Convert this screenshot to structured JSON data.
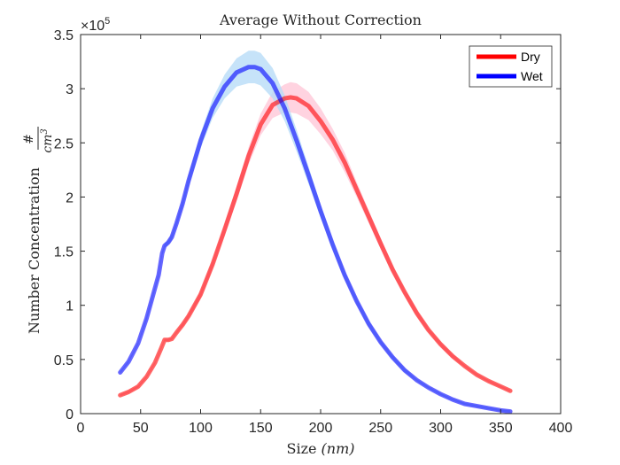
{
  "chart_data": {
    "type": "line",
    "title": "Average Without Correction",
    "xlabel": "Size (nm)",
    "xlabel_parts": {
      "text": "Size ",
      "unit": "(nm)"
    },
    "ylabel": "Number Concentration #/cm^3",
    "ylabel_parts": {
      "text": "Number Concentration",
      "num": "#",
      "den": "cm",
      "exp": "3"
    },
    "y_exponent_label": {
      "prefix": "×10",
      "power": "5"
    },
    "xlim": [
      0,
      400
    ],
    "ylim": [
      0,
      3.5
    ],
    "y_scale_factor": 100000,
    "x_ticks": [
      0,
      50,
      100,
      150,
      200,
      250,
      300,
      350,
      400
    ],
    "y_ticks": [
      0,
      0.5,
      1,
      1.5,
      2,
      2.5,
      3,
      3.5
    ],
    "y_tick_labels": [
      "0",
      "0.5",
      "1",
      "1.5",
      "2",
      "2.5",
      "3",
      "3.5"
    ],
    "grid": false,
    "legend_position": "top-right",
    "series": [
      {
        "name": "Dry",
        "color": "#ff0000",
        "band_color": "#ffc8d8",
        "x": [
          33,
          40,
          48,
          55,
          62,
          67,
          70,
          73,
          76,
          80,
          85,
          90,
          100,
          110,
          120,
          130,
          140,
          150,
          160,
          170,
          175,
          180,
          190,
          200,
          210,
          220,
          230,
          240,
          250,
          260,
          270,
          280,
          290,
          300,
          310,
          320,
          330,
          340,
          350,
          358
        ],
        "y": [
          0.17,
          0.2,
          0.25,
          0.34,
          0.47,
          0.6,
          0.68,
          0.68,
          0.69,
          0.75,
          0.82,
          0.9,
          1.1,
          1.38,
          1.7,
          2.03,
          2.38,
          2.67,
          2.85,
          2.91,
          2.92,
          2.91,
          2.84,
          2.7,
          2.53,
          2.32,
          2.07,
          1.82,
          1.57,
          1.33,
          1.12,
          0.93,
          0.77,
          0.64,
          0.53,
          0.44,
          0.36,
          0.3,
          0.25,
          0.21
        ],
        "band": [
          0.01,
          0.01,
          0.01,
          0.01,
          0.01,
          0.01,
          0.01,
          0.01,
          0.01,
          0.01,
          0.02,
          0.02,
          0.03,
          0.04,
          0.05,
          0.07,
          0.08,
          0.1,
          0.12,
          0.13,
          0.14,
          0.14,
          0.13,
          0.12,
          0.1,
          0.09,
          0.07,
          0.06,
          0.05,
          0.04,
          0.03,
          0.03,
          0.02,
          0.02,
          0.02,
          0.01,
          0.01,
          0.01,
          0.01,
          0.01
        ]
      },
      {
        "name": "Wet",
        "color": "#0000ff",
        "band_color": "#b8dcf8",
        "x": [
          33,
          40,
          48,
          55,
          60,
          65,
          68,
          70,
          73,
          76,
          80,
          85,
          90,
          100,
          110,
          120,
          130,
          140,
          145,
          150,
          160,
          170,
          180,
          190,
          200,
          210,
          220,
          230,
          240,
          250,
          260,
          270,
          280,
          290,
          300,
          310,
          320,
          330,
          340,
          350,
          358
        ],
        "y": [
          0.38,
          0.48,
          0.65,
          0.88,
          1.08,
          1.28,
          1.48,
          1.55,
          1.58,
          1.63,
          1.76,
          1.94,
          2.15,
          2.52,
          2.82,
          3.02,
          3.15,
          3.2,
          3.2,
          3.18,
          3.05,
          2.82,
          2.52,
          2.2,
          1.87,
          1.56,
          1.28,
          1.04,
          0.83,
          0.66,
          0.52,
          0.4,
          0.31,
          0.24,
          0.18,
          0.13,
          0.09,
          0.07,
          0.05,
          0.03,
          0.02
        ],
        "band": [
          0.01,
          0.01,
          0.01,
          0.02,
          0.02,
          0.02,
          0.02,
          0.02,
          0.02,
          0.03,
          0.03,
          0.04,
          0.05,
          0.07,
          0.09,
          0.11,
          0.13,
          0.15,
          0.15,
          0.15,
          0.14,
          0.12,
          0.1,
          0.08,
          0.06,
          0.05,
          0.04,
          0.03,
          0.03,
          0.02,
          0.02,
          0.02,
          0.01,
          0.01,
          0.01,
          0.01,
          0.01,
          0.01,
          0.01,
          0.01,
          0.01
        ]
      }
    ]
  }
}
